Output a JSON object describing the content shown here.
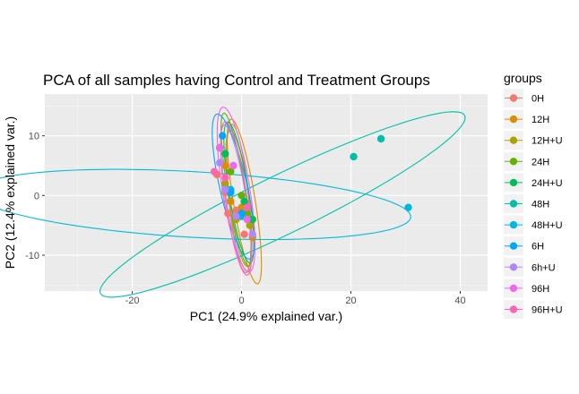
{
  "chart_data": {
    "type": "scatter",
    "title": "PCA of all samples having Control and Treatment Groups",
    "xlabel": "PC1 (24.9% explained var.)",
    "ylabel": "PC2 (12.4% explained var.)",
    "xlim": [
      -36,
      45
    ],
    "ylim": [
      -16,
      17
    ],
    "x_ticks": [
      -20,
      0,
      20,
      40
    ],
    "y_ticks": [
      -10,
      0,
      10
    ],
    "x_tick_labels": [
      "-20",
      "0",
      "20",
      "40"
    ],
    "y_tick_labels": [
      "-10",
      "0",
      "10"
    ],
    "grid": true,
    "legend_title": "groups",
    "legend_position": "right",
    "series": [
      {
        "name": "0H",
        "color": "#F8766D",
        "points": [
          [
            -4.5,
            3.5
          ],
          [
            -2.5,
            -3
          ],
          [
            -1,
            -2.5
          ],
          [
            1,
            -1.5
          ],
          [
            -3,
            0.5
          ],
          [
            0.5,
            -6.5
          ]
        ],
        "ellipse": {
          "cx": -0.5,
          "cy": -0.5,
          "rx": 12.5,
          "ry": 1.8,
          "angle": -84
        }
      },
      {
        "name": "12H",
        "color": "#DB8E00",
        "points": [
          [
            -2,
            -1
          ],
          [
            0,
            -2
          ],
          [
            2,
            -7
          ],
          [
            -3,
            5
          ]
        ],
        "ellipse": {
          "cx": 0.5,
          "cy": -1,
          "rx": 14,
          "ry": 2,
          "angle": -80
        }
      },
      {
        "name": "12H+U",
        "color": "#AEA200",
        "points": [
          [
            -3,
            2
          ],
          [
            -1,
            -4
          ],
          [
            1.5,
            -5
          ]
        ],
        "ellipse": {
          "cx": -0.5,
          "cy": -0.5,
          "rx": 11.5,
          "ry": 1.8,
          "angle": -82
        }
      },
      {
        "name": "24H",
        "color": "#64B200",
        "points": [
          [
            -4,
            8
          ],
          [
            0,
            0
          ],
          [
            1,
            -3
          ],
          [
            -2,
            4
          ]
        ],
        "ellipse": {
          "cx": -1,
          "cy": 1,
          "rx": 13,
          "ry": 1.6,
          "angle": -80
        }
      },
      {
        "name": "24H+U",
        "color": "#00BD5C",
        "points": [
          [
            -3,
            7
          ],
          [
            0.5,
            -1
          ],
          [
            2,
            -4
          ]
        ],
        "ellipse": {
          "cx": -0.5,
          "cy": 0.5,
          "rx": 12,
          "ry": 1.8,
          "angle": -80
        }
      },
      {
        "name": "48H",
        "color": "#00C1A7",
        "points": [
          [
            20.5,
            6.5
          ],
          [
            25.5,
            9.5
          ],
          [
            -3,
            1
          ]
        ],
        "ellipse": {
          "cx": 7.5,
          "cy": -1.5,
          "rx": 36.5,
          "ry": 5,
          "angle": 24
        }
      },
      {
        "name": "48H+U",
        "color": "#00BADE",
        "points": [
          [
            30.5,
            -2
          ],
          [
            -2,
            1
          ],
          [
            0,
            -3.5
          ]
        ],
        "ellipse": {
          "cx": -9,
          "cy": -1.5,
          "rx": 40,
          "ry": 5.5,
          "angle": -3
        }
      },
      {
        "name": "6H",
        "color": "#00A6FF",
        "points": [
          [
            -3.5,
            10
          ],
          [
            -2,
            0.5
          ],
          [
            0,
            -3
          ]
        ],
        "ellipse": {
          "cx": -1.5,
          "cy": 1.5,
          "rx": 12.5,
          "ry": 2.5,
          "angle": -76
        }
      },
      {
        "name": "6h+U",
        "color": "#B385FF",
        "points": [
          [
            -3,
            1
          ],
          [
            -1,
            -3.5
          ],
          [
            2,
            -6.5
          ],
          [
            -4,
            5.5
          ]
        ],
        "ellipse": {
          "cx": -1,
          "cy": -0.5,
          "rx": 12.5,
          "ry": 1.8,
          "angle": -80
        }
      },
      {
        "name": "96H",
        "color": "#EF67EB",
        "points": [
          [
            -1.5,
            5
          ],
          [
            -4,
            8
          ],
          [
            1,
            -4
          ]
        ],
        "ellipse": {
          "cx": -1,
          "cy": 1,
          "rx": 14,
          "ry": 2.5,
          "angle": -80
        }
      },
      {
        "name": "96H+U",
        "color": "#FF63B6",
        "points": [
          [
            -3,
            3
          ],
          [
            1,
            -2
          ],
          [
            -5,
            4
          ]
        ],
        "ellipse": {
          "cx": -1,
          "cy": -0.5,
          "rx": 13,
          "ry": 2,
          "angle": -81
        }
      }
    ]
  }
}
